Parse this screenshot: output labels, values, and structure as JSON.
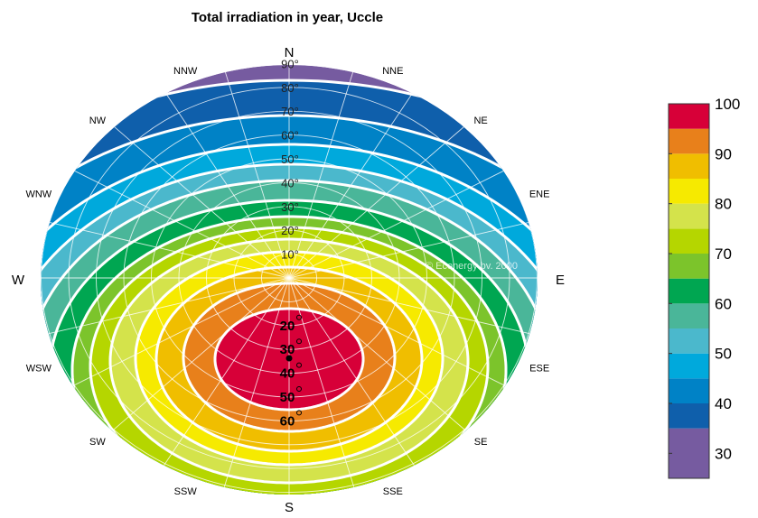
{
  "chart_data": {
    "type": "contour-polar",
    "title": "Total irradiation in year, Uccle",
    "watermark": "© Econergy bv. 2000",
    "compass_labels": [
      {
        "label": "N",
        "azimuth_deg": 0
      },
      {
        "label": "NNE",
        "azimuth_deg": 22.5
      },
      {
        "label": "NE",
        "azimuth_deg": 45
      },
      {
        "label": "ENE",
        "azimuth_deg": 67.5
      },
      {
        "label": "E",
        "azimuth_deg": 90
      },
      {
        "label": "ESE",
        "azimuth_deg": 112.5
      },
      {
        "label": "SE",
        "azimuth_deg": 135
      },
      {
        "label": "SSE",
        "azimuth_deg": 157.5
      },
      {
        "label": "S",
        "azimuth_deg": 180
      },
      {
        "label": "SSW",
        "azimuth_deg": 202.5
      },
      {
        "label": "SW",
        "azimuth_deg": 225
      },
      {
        "label": "WSW",
        "azimuth_deg": 247.5
      },
      {
        "label": "W",
        "azimuth_deg": 270
      },
      {
        "label": "WNW",
        "azimuth_deg": 292.5
      },
      {
        "label": "NW",
        "azimuth_deg": 315
      },
      {
        "label": "NNW",
        "azimuth_deg": 337.5
      }
    ],
    "tilt_labels_north": [
      "10°",
      "20°",
      "30°",
      "40°",
      "50°",
      "60°",
      "70°",
      "80°",
      "90°"
    ],
    "tilt_labels_south": [
      "20",
      "30",
      "40",
      "50",
      "60"
    ],
    "tilt_range_deg": [
      0,
      90
    ],
    "optimum": {
      "tilt_deg": 35,
      "azimuth": "S"
    },
    "contour_levels": [
      35,
      40,
      45,
      50,
      55,
      60,
      65,
      70,
      75,
      80,
      85,
      90,
      95
    ],
    "colorbar": {
      "range": [
        25,
        100
      ],
      "ticks": [
        "30",
        "40",
        "50",
        "60",
        "70",
        "80",
        "90",
        "100"
      ],
      "bands": [
        {
          "from": 25,
          "to": 35,
          "color": "#765ba0"
        },
        {
          "from": 35,
          "to": 40,
          "color": "#0f5fab"
        },
        {
          "from": 40,
          "to": 45,
          "color": "#0082c6"
        },
        {
          "from": 45,
          "to": 50,
          "color": "#00a9dc"
        },
        {
          "from": 50,
          "to": 55,
          "color": "#4bb8cc"
        },
        {
          "from": 55,
          "to": 60,
          "color": "#4ab699"
        },
        {
          "from": 60,
          "to": 65,
          "color": "#00a651"
        },
        {
          "from": 65,
          "to": 70,
          "color": "#7cc42b"
        },
        {
          "from": 70,
          "to": 75,
          "color": "#b5d600"
        },
        {
          "from": 75,
          "to": 80,
          "color": "#d4e34b"
        },
        {
          "from": 80,
          "to": 85,
          "color": "#f6ea00"
        },
        {
          "from": 85,
          "to": 90,
          "color": "#f0be00"
        },
        {
          "from": 90,
          "to": 95,
          "color": "#e8801b"
        },
        {
          "from": 95,
          "to": 100,
          "color": "#d70038"
        }
      ]
    }
  }
}
